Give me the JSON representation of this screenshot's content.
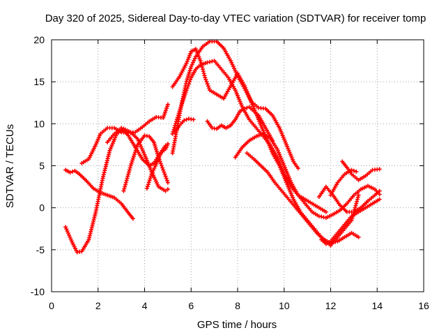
{
  "chart_data": {
    "type": "scatter",
    "title": "Day 320 of 2025, Sidereal Day-to-day VTEC variation (SDTVAR) for receiver tomp",
    "xlabel": "GPS time / hours",
    "ylabel": "SDTVAR / TECUs",
    "xlim": [
      0,
      16
    ],
    "ylim": [
      -10,
      20
    ],
    "xticks": [
      0,
      2,
      4,
      6,
      8,
      10,
      12,
      14,
      16
    ],
    "yticks": [
      -10,
      -5,
      0,
      5,
      10,
      15,
      20
    ],
    "grid": true,
    "legend": "none",
    "marker": "plus",
    "color": "#ff0000",
    "series": [
      {
        "x": [
          0.6,
          0.9,
          1.1,
          1.3,
          1.6,
          1.9,
          2.2,
          2.5,
          2.8,
          3.1,
          3.4,
          3.7,
          4.0,
          4.3,
          4.6,
          4.9,
          5.0
        ],
        "y": [
          -2.3,
          -4.2,
          -5.3,
          -5.2,
          -3.8,
          -0.5,
          3.5,
          6.8,
          8.8,
          9.4,
          9.0,
          8.2,
          6.3,
          4.3,
          2.5,
          2.0,
          2.2
        ]
      },
      {
        "x": [
          0.6,
          0.8,
          1.0,
          1.2,
          1.5,
          1.8,
          2.1,
          2.4,
          2.7,
          3.0,
          3.3,
          3.5
        ],
        "y": [
          4.5,
          4.2,
          4.4,
          4.0,
          3.2,
          2.3,
          1.8,
          1.5,
          1.2,
          0.5,
          -0.6,
          -1.3
        ]
      },
      {
        "x": [
          1.3,
          1.6,
          1.9,
          2.1,
          2.4,
          2.7,
          3.0,
          3.3,
          3.6,
          3.9,
          4.2,
          4.5,
          4.8,
          5.0
        ],
        "y": [
          5.3,
          5.8,
          7.5,
          8.8,
          9.5,
          9.5,
          9.0,
          8.9,
          9.0,
          9.6,
          10.3,
          10.8,
          10.7,
          12.3
        ]
      },
      {
        "x": [
          2.4,
          2.7,
          3.0,
          3.3,
          3.6,
          3.9,
          4.2,
          4.4,
          4.7,
          4.9
        ],
        "y": [
          7.8,
          8.8,
          9.5,
          8.6,
          7.2,
          5.8,
          5.0,
          5.3,
          6.6,
          7.4
        ]
      },
      {
        "x": [
          3.1,
          3.4,
          3.7,
          4.0,
          4.2,
          4.4,
          4.6,
          4.8,
          5.0
        ],
        "y": [
          2.0,
          5.0,
          7.5,
          8.6,
          8.5,
          7.8,
          6.0,
          4.5,
          3.0
        ]
      },
      {
        "x": [
          4.1,
          4.3,
          4.5,
          4.7,
          4.9,
          5.0
        ],
        "y": [
          2.3,
          4.0,
          5.2,
          6.5,
          7.0,
          7.6
        ]
      },
      {
        "x": [
          5.2,
          5.4,
          5.6,
          5.8,
          6.0,
          6.2,
          6.5,
          6.8,
          7.1,
          7.4,
          7.7,
          8.0,
          8.3,
          8.6,
          8.9,
          9.2,
          9.5,
          9.8,
          10.1,
          10.4,
          10.6
        ],
        "y": [
          6.5,
          9.5,
          12.5,
          15.0,
          16.8,
          18.0,
          19.2,
          19.8,
          19.8,
          19.0,
          17.5,
          15.7,
          14.2,
          12.6,
          11.9,
          11.8,
          11.0,
          9.5,
          7.5,
          5.5,
          4.7
        ]
      },
      {
        "x": [
          5.2,
          5.5,
          5.8,
          6.0,
          6.2,
          6.4,
          6.6,
          6.8,
          7.1,
          7.4,
          7.7,
          8.0,
          8.3,
          8.6,
          8.9,
          9.2,
          9.5,
          9.8,
          10.1,
          10.4,
          10.7,
          11.0,
          11.3,
          11.6,
          11.8,
          12.0,
          12.3,
          12.6,
          12.9,
          13.2
        ],
        "y": [
          14.4,
          15.6,
          17.2,
          18.6,
          18.9,
          17.5,
          15.5,
          14.0,
          13.5,
          13.0,
          14.5,
          16.0,
          14.5,
          12.5,
          10.5,
          8.5,
          6.5,
          5.0,
          3.0,
          1.0,
          -0.5,
          -1.5,
          -2.5,
          -3.5,
          -4.0,
          -4.5,
          -3.5,
          -2.5,
          -1.5,
          1.5
        ]
      },
      {
        "x": [
          5.2,
          5.5,
          5.8,
          6.0,
          6.2,
          6.4,
          6.7,
          7.0,
          7.3,
          7.6,
          7.9,
          8.2,
          8.5,
          8.8,
          9.1,
          9.4,
          9.7,
          10.0,
          10.3,
          10.6,
          10.9,
          11.2,
          11.5,
          11.8
        ],
        "y": [
          8.8,
          11.5,
          14.0,
          15.5,
          16.5,
          17.0,
          17.3,
          17.5,
          16.5,
          15.5,
          14.0,
          12.0,
          10.5,
          9.5,
          8.5,
          7.5,
          6.0,
          4.0,
          2.5,
          1.5,
          1.0,
          0.5,
          0.0,
          -0.5
        ]
      },
      {
        "x": [
          5.3,
          5.5,
          5.7,
          5.9,
          6.1
        ],
        "y": [
          9.0,
          9.8,
          10.4,
          10.6,
          10.5
        ]
      },
      {
        "x": [
          6.7,
          6.9,
          7.1,
          7.3,
          7.5,
          7.7,
          7.9,
          8.1,
          8.3,
          8.5,
          8.7,
          8.9,
          9.1,
          9.3,
          9.5
        ],
        "y": [
          10.3,
          9.5,
          9.4,
          9.8,
          9.5,
          9.8,
          10.5,
          11.5,
          11.8,
          12.0,
          11.5,
          11.0,
          10.0,
          9.0,
          8.0
        ]
      },
      {
        "x": [
          7.9,
          8.2,
          8.5,
          8.8,
          9.1,
          9.4,
          9.7,
          10.0,
          10.3,
          10.6,
          10.9,
          11.2,
          11.5,
          11.8,
          12.1,
          12.4,
          12.7,
          13.0,
          13.3,
          13.6,
          13.9,
          14.1
        ],
        "y": [
          6.0,
          7.2,
          8.0,
          8.5,
          8.8,
          8.3,
          7.0,
          5.0,
          3.0,
          1.5,
          0.5,
          -0.5,
          -1.0,
          -1.2,
          -0.8,
          -0.3,
          0.5,
          1.5,
          2.2,
          2.6,
          2.2,
          1.6
        ]
      },
      {
        "x": [
          8.4,
          8.7,
          9.0,
          9.3,
          9.6,
          9.9,
          10.2,
          10.5,
          10.8,
          11.1,
          11.4,
          11.7,
          12.0,
          12.3,
          12.6,
          12.9,
          13.2
        ],
        "y": [
          6.5,
          5.8,
          5.0,
          4.2,
          3.0,
          2.0,
          1.0,
          0.0,
          -1.0,
          -2.0,
          -3.0,
          -3.8,
          -4.2,
          -4.0,
          -3.5,
          -3.0,
          -3.5
        ]
      },
      {
        "x": [
          11.5,
          11.8,
          12.1,
          12.4,
          12.7,
          13.0,
          13.3,
          13.6,
          13.9,
          14.1
        ],
        "y": [
          1.3,
          2.5,
          1.5,
          0.3,
          -0.5,
          -0.5,
          0.0,
          0.8,
          1.5,
          2.0
        ]
      },
      {
        "x": [
          11.6,
          11.8,
          12.0,
          12.3,
          12.6,
          12.9,
          13.2,
          13.5,
          13.8,
          14.1
        ],
        "y": [
          -3.8,
          -4.3,
          -4.0,
          -3.0,
          -2.0,
          -1.0,
          -0.5,
          0.0,
          0.5,
          1.0
        ]
      },
      {
        "x": [
          12.5,
          12.7,
          12.9,
          13.2,
          13.5,
          13.8,
          14.1
        ],
        "y": [
          5.5,
          4.8,
          4.0,
          3.3,
          3.8,
          4.5,
          4.6
        ]
      },
      {
        "x": [
          12.0,
          12.3,
          12.6,
          12.9,
          13.1
        ],
        "y": [
          1.5,
          3.0,
          4.0,
          4.5,
          4.3
        ]
      }
    ]
  }
}
